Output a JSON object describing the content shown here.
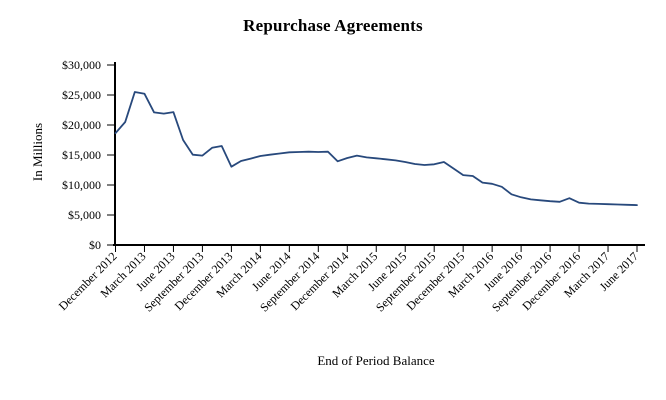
{
  "chart": {
    "title": "Repurchase Agreements",
    "y_axis_title": "In Millions",
    "x_axis_title": "End of Period Balance"
  },
  "chart_data": {
    "type": "line",
    "title": "Repurchase Agreements",
    "xlabel": "End of Period Balance",
    "ylabel": "In Millions",
    "ylim": [
      0,
      30000
    ],
    "y_tick_interval": 5000,
    "y_tick_labels": [
      "$0",
      "$5,000",
      "$10,000",
      "$15,000",
      "$20,000",
      "$25,000",
      "$30,000"
    ],
    "x_tick_labels": [
      "December 2012",
      "March 2013",
      "June 2013",
      "September 2013",
      "December 2013",
      "March 2014",
      "June 2014",
      "September 2014",
      "December 2014",
      "March 2015",
      "June 2015",
      "September 2015",
      "December 2015",
      "March 2016",
      "June 2016",
      "September 2016",
      "December 2016",
      "March 2017",
      "June 2017"
    ],
    "x_ticks_every_n_points": 3,
    "frequency": "monthly",
    "grid": false,
    "legend": "none",
    "line_color": "#28497c",
    "axis_color": "#000000",
    "series": [
      {
        "name": "End of Period Balance",
        "x": [
          "Dec 2012",
          "Jan 2013",
          "Feb 2013",
          "Mar 2013",
          "Apr 2013",
          "May 2013",
          "Jun 2013",
          "Jul 2013",
          "Aug 2013",
          "Sep 2013",
          "Oct 2013",
          "Nov 2013",
          "Dec 2013",
          "Jan 2014",
          "Feb 2014",
          "Mar 2014",
          "Apr 2014",
          "May 2014",
          "Jun 2014",
          "Jul 2014",
          "Aug 2014",
          "Sep 2014",
          "Oct 2014",
          "Nov 2014",
          "Dec 2014",
          "Jan 2015",
          "Feb 2015",
          "Mar 2015",
          "Apr 2015",
          "May 2015",
          "Jun 2015",
          "Jul 2015",
          "Aug 2015",
          "Sep 2015",
          "Oct 2015",
          "Nov 2015",
          "Dec 2015",
          "Jan 2016",
          "Feb 2016",
          "Mar 2016",
          "Apr 2016",
          "May 2016",
          "Jun 2016",
          "Jul 2016",
          "Aug 2016",
          "Sep 2016",
          "Oct 2016",
          "Nov 2016",
          "Dec 2016",
          "Jan 2017",
          "Feb 2017",
          "Mar 2017",
          "Apr 2017",
          "May 2017",
          "Jun 2017"
        ],
        "values": [
          18650,
          20500,
          25500,
          25200,
          22100,
          21900,
          22150,
          17500,
          15050,
          14900,
          16200,
          16500,
          13050,
          14000,
          14400,
          14830,
          15050,
          15250,
          15450,
          15500,
          15550,
          15500,
          15550,
          13950,
          14500,
          14900,
          14600,
          14450,
          14280,
          14100,
          13830,
          13500,
          13330,
          13450,
          13830,
          12750,
          11650,
          11500,
          10400,
          10200,
          9700,
          8450,
          7950,
          7600,
          7450,
          7300,
          7200,
          7800,
          7050,
          6900,
          6850,
          6800,
          6750,
          6700,
          6650
        ]
      }
    ]
  }
}
